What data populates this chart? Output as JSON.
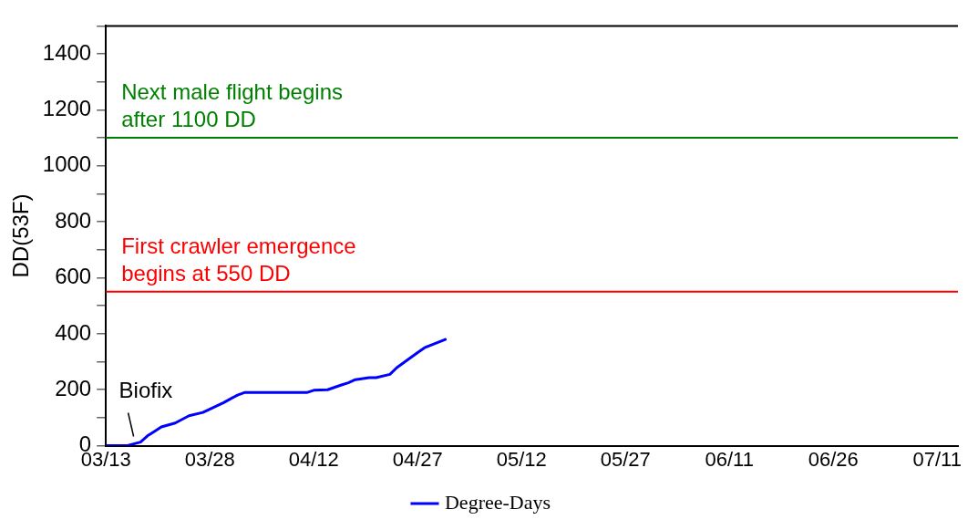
{
  "chart_data": {
    "type": "line",
    "ylabel": "DD(53F)",
    "x": [
      "--03-13",
      "--03-16",
      "--03-18",
      "--03-19",
      "--03-20",
      "--03-21",
      "--03-23",
      "--03-25",
      "--03-27",
      "--03-30",
      "--04-01",
      "--04-02",
      "--04-11",
      "--04-12",
      "--04-14",
      "--04-16",
      "--04-17",
      "--04-18",
      "--04-20",
      "--04-21",
      "--04-23",
      "--04-24",
      "--04-27",
      "--04-28",
      "--05-01"
    ],
    "series": [
      {
        "name": "Degree-Days",
        "color": "#0000ff",
        "values": [
          0,
          0,
          13,
          35,
          51,
          67,
          81,
          107,
          119,
          154,
          181,
          190,
          190,
          198,
          200,
          217,
          225,
          236,
          243,
          243,
          255,
          279,
          333,
          350,
          380
        ]
      }
    ],
    "xlim": [
      "--03-13",
      "--07-14"
    ],
    "xticks": [
      {
        "value": "--03-13",
        "label": "03/13"
      },
      {
        "value": "--03-28",
        "label": "03/28"
      },
      {
        "value": "--04-12",
        "label": "04/12"
      },
      {
        "value": "--04-27",
        "label": "04/27"
      },
      {
        "value": "--05-12",
        "label": "05/12"
      },
      {
        "value": "--05-27",
        "label": "05/27"
      },
      {
        "value": "--06-11",
        "label": "06/11"
      },
      {
        "value": "--06-26",
        "label": "06/26"
      },
      {
        "value": "--07-11",
        "label": "07/11"
      }
    ],
    "ylim": [
      0,
      1500
    ],
    "yticks": [
      0,
      {
        "value": 100,
        "label": null
      },
      200,
      {
        "value": 300,
        "label": null
      },
      400,
      {
        "value": 500,
        "label": null
      },
      600,
      {
        "value": 700,
        "label": null
      },
      800,
      {
        "value": 900,
        "label": null
      },
      1000,
      {
        "value": 1100,
        "label": null
      },
      1200,
      {
        "value": 1300,
        "label": null
      },
      1400,
      {
        "value": 1500,
        "label": null
      }
    ],
    "ref_lines": [
      {
        "axis": "y",
        "value": 1100,
        "label": "Next male flight begins\nafter 1100 DD",
        "color": "#008000"
      },
      {
        "axis": "y",
        "value": 550,
        "label": "First crawler emergence\nbegins at 550 DD",
        "color": "#ff0000"
      }
    ],
    "annotations": [
      {
        "text": "Biofix",
        "x": "--03-17",
        "y": 20
      }
    ],
    "grid": false,
    "legend": "bottom",
    "marker": "none",
    "line_style": "solid"
  }
}
